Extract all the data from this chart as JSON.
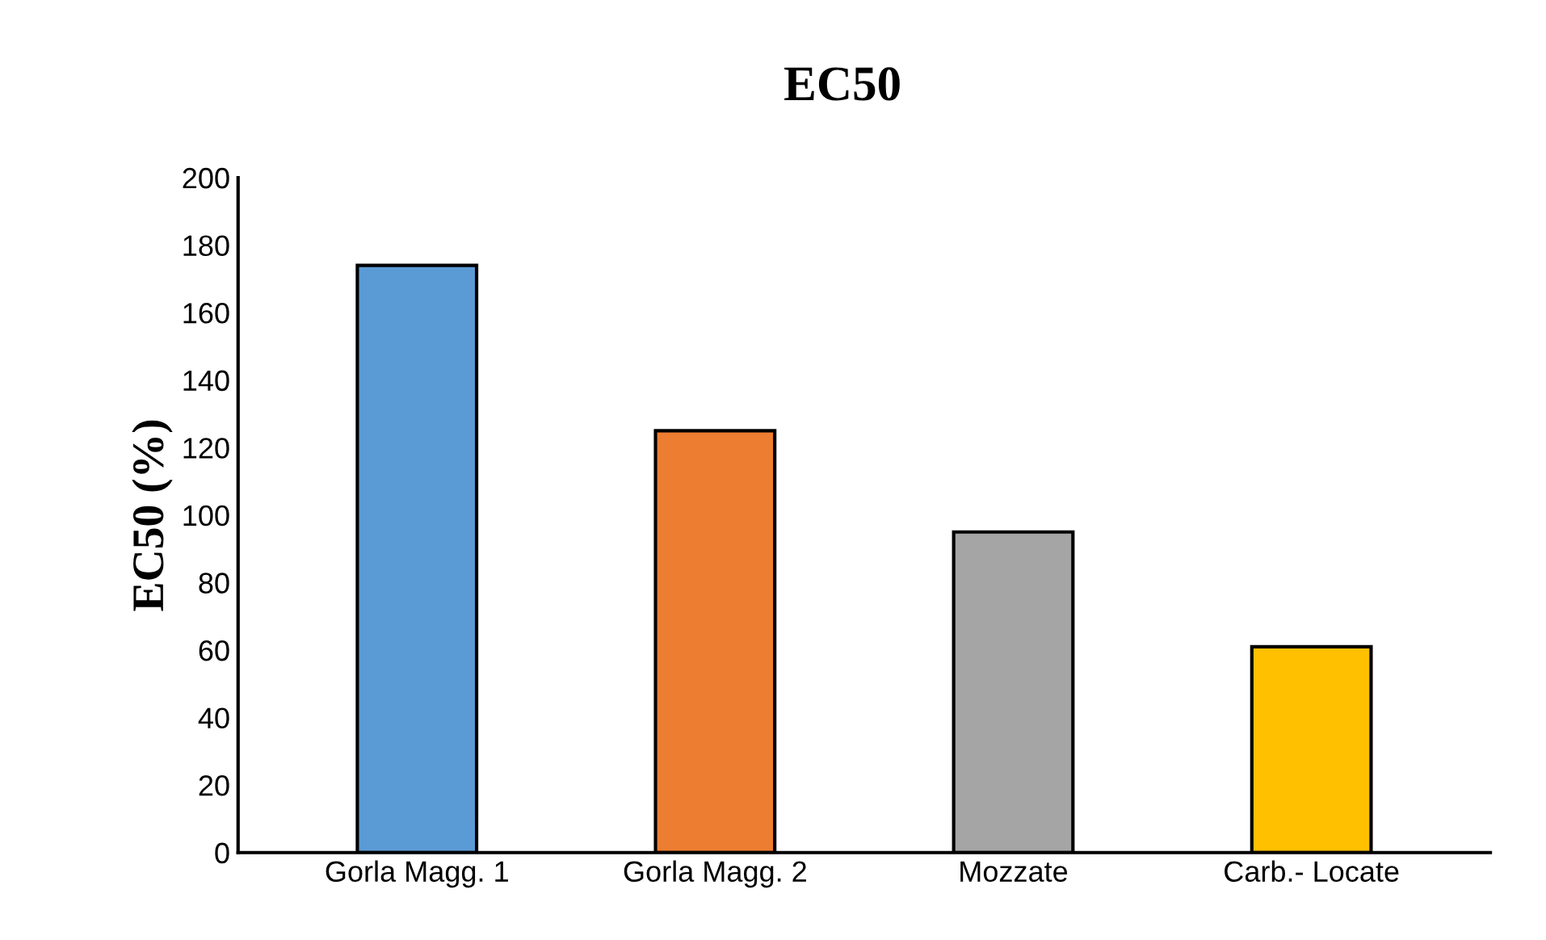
{
  "chart_data": {
    "type": "bar",
    "title": "EC50",
    "ylabel": "EC50 (%)",
    "categories": [
      "Gorla Magg. 1",
      "Gorla Magg. 2",
      "Mozzate",
      "Carb.- Locate"
    ],
    "values": [
      174,
      125,
      95,
      61
    ],
    "colors": [
      "#5b9bd5",
      "#ed7d31",
      "#a5a5a5",
      "#ffc000"
    ],
    "ylim": [
      0,
      200
    ],
    "yticks": [
      0,
      20,
      40,
      60,
      80,
      100,
      120,
      140,
      160,
      180,
      200
    ],
    "grid": false
  }
}
